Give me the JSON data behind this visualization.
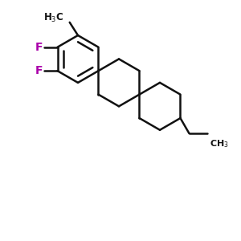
{
  "background_color": "#ffffff",
  "line_color": "#111111",
  "F_color": "#aa00aa",
  "line_width": 1.8,
  "figsize": [
    3.0,
    3.0
  ],
  "dpi": 100,
  "xlim": [
    0,
    10
  ],
  "ylim": [
    0,
    10
  ]
}
